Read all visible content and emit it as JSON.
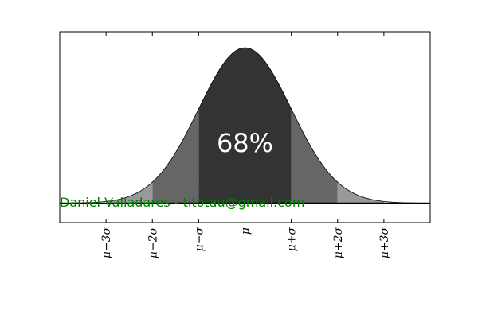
{
  "chart_data": {
    "type": "area",
    "distribution": "normal",
    "xlim": [
      -4,
      4
    ],
    "ylim": [
      -0.05,
      0.44
    ],
    "bands": [
      {
        "range": [
          -1,
          1
        ],
        "color": "#333333"
      },
      {
        "range": [
          -2,
          -1
        ],
        "color": "#666666"
      },
      {
        "range": [
          1,
          2
        ],
        "color": "#666666"
      },
      {
        "range": [
          -3,
          -2
        ],
        "color": "#999999"
      },
      {
        "range": [
          2,
          3
        ],
        "color": "#999999"
      }
    ],
    "center_label": "68%",
    "x_ticks": [
      {
        "value": -3,
        "label": "μ−3σ"
      },
      {
        "value": -2,
        "label": "μ−2σ"
      },
      {
        "value": -1,
        "label": "μ−σ"
      },
      {
        "value": 0,
        "label": "μ"
      },
      {
        "value": 1,
        "label": "μ+σ"
      },
      {
        "value": 2,
        "label": "μ+2σ"
      },
      {
        "value": 3,
        "label": "μ+3σ"
      }
    ],
    "grid": false,
    "watermark": "Daniel Valladares - titotau@gmail.com"
  }
}
